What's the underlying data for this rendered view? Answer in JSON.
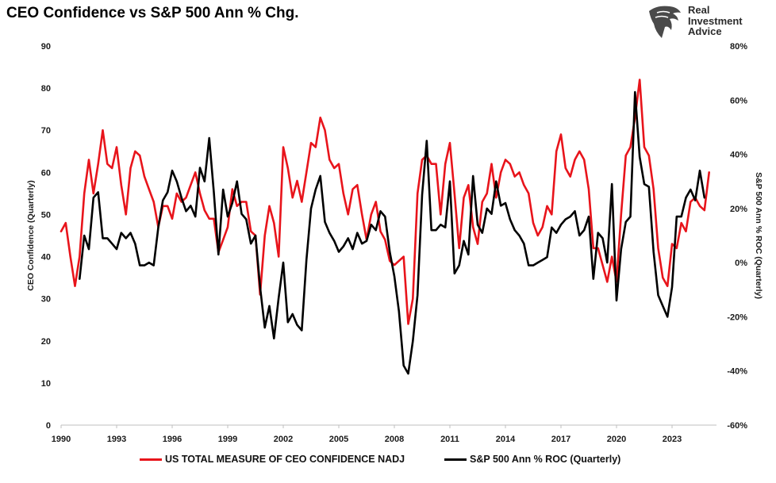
{
  "title": "CEO Confidence vs S&P 500 Ann % Chg.",
  "logo": {
    "line1": "Real",
    "line2": "Investment",
    "line3": "Advice",
    "icon": "eagle-head-icon"
  },
  "colors": {
    "ceo": "#e8141b",
    "sp": "#000000"
  },
  "chart_data": {
    "type": "line",
    "x_ticks": [
      "1990",
      "1993",
      "1996",
      "1999",
      "2002",
      "2005",
      "2008",
      "2011",
      "2014",
      "2017",
      "2020",
      "2023"
    ],
    "x_range": [
      1990,
      2025.4
    ],
    "y_left": {
      "label": "CEO Confidence (Quarterly)",
      "range": [
        0,
        90
      ],
      "ticks": [
        "0",
        "10",
        "20",
        "30",
        "40",
        "50",
        "60",
        "70",
        "80",
        "90"
      ]
    },
    "y_right": {
      "label": "S&P 500 Ann % ROC (Quarterly)",
      "range": [
        -60,
        80
      ],
      "ticks": [
        "-60%",
        "-40%",
        "-20%",
        "0%",
        "20%",
        "40%",
        "60%",
        "80%"
      ]
    },
    "grid": false,
    "legend_position": "bottom",
    "series": [
      {
        "name": "US TOTAL MEASURE OF CEO CONFIDENCE NADJ",
        "axis": "left",
        "points": [
          [
            1990.0,
            46
          ],
          [
            1990.25,
            48
          ],
          [
            1990.5,
            40
          ],
          [
            1990.75,
            33
          ],
          [
            1991.0,
            40
          ],
          [
            1991.25,
            55
          ],
          [
            1991.5,
            63
          ],
          [
            1991.75,
            55
          ],
          [
            1992.0,
            62
          ],
          [
            1992.25,
            70
          ],
          [
            1992.5,
            62
          ],
          [
            1992.75,
            61
          ],
          [
            1993.0,
            66
          ],
          [
            1993.25,
            57
          ],
          [
            1993.5,
            50
          ],
          [
            1993.75,
            61
          ],
          [
            1994.0,
            65
          ],
          [
            1994.25,
            64
          ],
          [
            1994.5,
            59
          ],
          [
            1994.75,
            56
          ],
          [
            1995.0,
            53
          ],
          [
            1995.25,
            47
          ],
          [
            1995.5,
            52
          ],
          [
            1995.75,
            52
          ],
          [
            1996.0,
            49
          ],
          [
            1996.25,
            55
          ],
          [
            1996.5,
            53
          ],
          [
            1996.75,
            54
          ],
          [
            1997.0,
            57
          ],
          [
            1997.25,
            60
          ],
          [
            1997.5,
            55
          ],
          [
            1997.75,
            51
          ],
          [
            1998.0,
            49
          ],
          [
            1998.25,
            49
          ],
          [
            1998.5,
            41
          ],
          [
            1998.75,
            44
          ],
          [
            1999.0,
            47
          ],
          [
            1999.25,
            56
          ],
          [
            1999.5,
            52
          ],
          [
            1999.75,
            53
          ],
          [
            2000.0,
            53
          ],
          [
            2000.25,
            46
          ],
          [
            2000.5,
            45
          ],
          [
            2000.75,
            31
          ],
          [
            2001.0,
            45
          ],
          [
            2001.25,
            52
          ],
          [
            2001.5,
            48
          ],
          [
            2001.75,
            40
          ],
          [
            2002.0,
            66
          ],
          [
            2002.25,
            61
          ],
          [
            2002.5,
            54
          ],
          [
            2002.75,
            58
          ],
          [
            2003.0,
            53
          ],
          [
            2003.25,
            60
          ],
          [
            2003.5,
            67
          ],
          [
            2003.75,
            66
          ],
          [
            2004.0,
            73
          ],
          [
            2004.25,
            70
          ],
          [
            2004.5,
            63
          ],
          [
            2004.75,
            61
          ],
          [
            2005.0,
            62
          ],
          [
            2005.25,
            55
          ],
          [
            2005.5,
            50
          ],
          [
            2005.75,
            56
          ],
          [
            2006.0,
            57
          ],
          [
            2006.25,
            50
          ],
          [
            2006.5,
            44
          ],
          [
            2006.75,
            50
          ],
          [
            2007.0,
            53
          ],
          [
            2007.25,
            46
          ],
          [
            2007.5,
            44
          ],
          [
            2007.75,
            39
          ],
          [
            2008.0,
            38
          ],
          [
            2008.25,
            39
          ],
          [
            2008.5,
            40
          ],
          [
            2008.75,
            24
          ],
          [
            2009.0,
            30
          ],
          [
            2009.25,
            55
          ],
          [
            2009.5,
            63
          ],
          [
            2009.75,
            64
          ],
          [
            2010.0,
            62
          ],
          [
            2010.25,
            62
          ],
          [
            2010.5,
            50
          ],
          [
            2010.75,
            62
          ],
          [
            2011.0,
            67
          ],
          [
            2011.25,
            55
          ],
          [
            2011.5,
            42
          ],
          [
            2011.75,
            54
          ],
          [
            2012.0,
            57
          ],
          [
            2012.25,
            47
          ],
          [
            2012.5,
            43
          ],
          [
            2012.75,
            53
          ],
          [
            2013.0,
            55
          ],
          [
            2013.25,
            62
          ],
          [
            2013.5,
            54
          ],
          [
            2013.75,
            60
          ],
          [
            2014.0,
            63
          ],
          [
            2014.25,
            62
          ],
          [
            2014.5,
            59
          ],
          [
            2014.75,
            60
          ],
          [
            2015.0,
            57
          ],
          [
            2015.25,
            55
          ],
          [
            2015.5,
            48
          ],
          [
            2015.75,
            45
          ],
          [
            2016.0,
            47
          ],
          [
            2016.25,
            52
          ],
          [
            2016.5,
            50
          ],
          [
            2016.75,
            65
          ],
          [
            2017.0,
            69
          ],
          [
            2017.25,
            61
          ],
          [
            2017.5,
            59
          ],
          [
            2017.75,
            63
          ],
          [
            2018.0,
            65
          ],
          [
            2018.25,
            63
          ],
          [
            2018.5,
            56
          ],
          [
            2018.75,
            42
          ],
          [
            2019.0,
            42
          ],
          [
            2019.25,
            38
          ],
          [
            2019.5,
            34
          ],
          [
            2019.75,
            40
          ],
          [
            2020.0,
            34
          ],
          [
            2020.25,
            50
          ],
          [
            2020.5,
            64
          ],
          [
            2020.75,
            66
          ],
          [
            2021.0,
            73
          ],
          [
            2021.25,
            82
          ],
          [
            2021.5,
            66
          ],
          [
            2021.75,
            64
          ],
          [
            2022.0,
            56
          ],
          [
            2022.25,
            42
          ],
          [
            2022.5,
            35
          ],
          [
            2022.75,
            33
          ],
          [
            2023.0,
            43
          ],
          [
            2023.25,
            42
          ],
          [
            2023.5,
            48
          ],
          [
            2023.75,
            46
          ],
          [
            2024.0,
            53
          ],
          [
            2024.25,
            54
          ],
          [
            2024.5,
            52
          ],
          [
            2024.75,
            51
          ],
          [
            2025.0,
            60
          ]
        ]
      },
      {
        "name": "S&P 500 Ann % ROC (Quarterly)",
        "axis": "right",
        "points": [
          [
            1990.0,
            null
          ],
          [
            1990.25,
            null
          ],
          [
            1990.5,
            null
          ],
          [
            1990.75,
            null
          ],
          [
            1991.0,
            -6
          ],
          [
            1991.25,
            10
          ],
          [
            1991.5,
            5
          ],
          [
            1991.75,
            24
          ],
          [
            1992.0,
            26
          ],
          [
            1992.25,
            9
          ],
          [
            1992.5,
            9
          ],
          [
            1992.75,
            7
          ],
          [
            1993.0,
            5
          ],
          [
            1993.25,
            11
          ],
          [
            1993.5,
            9
          ],
          [
            1993.75,
            11
          ],
          [
            1994.0,
            7
          ],
          [
            1994.25,
            -1
          ],
          [
            1994.5,
            -1
          ],
          [
            1994.75,
            0
          ],
          [
            1995.0,
            -1
          ],
          [
            1995.25,
            13
          ],
          [
            1995.5,
            23
          ],
          [
            1995.75,
            26
          ],
          [
            1996.0,
            34
          ],
          [
            1996.25,
            30
          ],
          [
            1996.5,
            24
          ],
          [
            1996.75,
            19
          ],
          [
            1997.0,
            21
          ],
          [
            1997.25,
            17
          ],
          [
            1997.5,
            35
          ],
          [
            1997.75,
            30
          ],
          [
            1998.0,
            46
          ],
          [
            1998.25,
            26
          ],
          [
            1998.5,
            3
          ],
          [
            1998.75,
            27
          ],
          [
            1999.0,
            17
          ],
          [
            1999.25,
            22
          ],
          [
            1999.5,
            30
          ],
          [
            1999.75,
            18
          ],
          [
            2000.0,
            16
          ],
          [
            2000.25,
            7
          ],
          [
            2000.5,
            10
          ],
          [
            2000.75,
            -9
          ],
          [
            2001.0,
            -24
          ],
          [
            2001.25,
            -16
          ],
          [
            2001.5,
            -28
          ],
          [
            2001.75,
            -13
          ],
          [
            2002.0,
            0
          ],
          [
            2002.25,
            -22
          ],
          [
            2002.5,
            -19
          ],
          [
            2002.75,
            -23
          ],
          [
            2003.0,
            -25
          ],
          [
            2003.25,
            1
          ],
          [
            2003.5,
            20
          ],
          [
            2003.75,
            27
          ],
          [
            2004.0,
            32
          ],
          [
            2004.25,
            15
          ],
          [
            2004.5,
            11
          ],
          [
            2004.75,
            8
          ],
          [
            2005.0,
            4
          ],
          [
            2005.25,
            6
          ],
          [
            2005.5,
            9
          ],
          [
            2005.75,
            5
          ],
          [
            2006.0,
            11
          ],
          [
            2006.25,
            7
          ],
          [
            2006.5,
            8
          ],
          [
            2006.75,
            14
          ],
          [
            2007.0,
            12
          ],
          [
            2007.25,
            19
          ],
          [
            2007.5,
            17
          ],
          [
            2007.75,
            4
          ],
          [
            2008.0,
            -5
          ],
          [
            2008.25,
            -18
          ],
          [
            2008.5,
            -38
          ],
          [
            2008.75,
            -41
          ],
          [
            2009.0,
            -29
          ],
          [
            2009.25,
            -12
          ],
          [
            2009.5,
            25
          ],
          [
            2009.75,
            45
          ],
          [
            2010.0,
            12
          ],
          [
            2010.25,
            12
          ],
          [
            2010.5,
            14
          ],
          [
            2010.75,
            13
          ],
          [
            2011.0,
            30
          ],
          [
            2011.25,
            -4
          ],
          [
            2011.5,
            -1
          ],
          [
            2011.75,
            8
          ],
          [
            2012.0,
            3
          ],
          [
            2012.25,
            32
          ],
          [
            2012.5,
            14
          ],
          [
            2012.75,
            11
          ],
          [
            2013.0,
            20
          ],
          [
            2013.25,
            18
          ],
          [
            2013.5,
            30
          ],
          [
            2013.75,
            21
          ],
          [
            2014.0,
            22
          ],
          [
            2014.25,
            16
          ],
          [
            2014.5,
            12
          ],
          [
            2014.75,
            10
          ],
          [
            2015.0,
            7
          ],
          [
            2015.25,
            -1
          ],
          [
            2015.5,
            -1
          ],
          [
            2015.75,
            0
          ],
          [
            2016.0,
            1
          ],
          [
            2016.25,
            2
          ],
          [
            2016.5,
            13
          ],
          [
            2016.75,
            11
          ],
          [
            2017.0,
            14
          ],
          [
            2017.25,
            16
          ],
          [
            2017.5,
            17
          ],
          [
            2017.75,
            19
          ],
          [
            2018.0,
            10
          ],
          [
            2018.25,
            12
          ],
          [
            2018.5,
            17
          ],
          [
            2018.75,
            -6
          ],
          [
            2019.0,
            11
          ],
          [
            2019.25,
            9
          ],
          [
            2019.5,
            0
          ],
          [
            2019.75,
            29
          ],
          [
            2020.0,
            -14
          ],
          [
            2020.25,
            5
          ],
          [
            2020.5,
            15
          ],
          [
            2020.75,
            17
          ],
          [
            2021.0,
            63
          ],
          [
            2021.25,
            39
          ],
          [
            2021.5,
            29
          ],
          [
            2021.75,
            28
          ],
          [
            2022.0,
            4
          ],
          [
            2022.25,
            -12
          ],
          [
            2022.5,
            -16
          ],
          [
            2022.75,
            -20
          ],
          [
            2023.0,
            -9
          ],
          [
            2023.25,
            17
          ],
          [
            2023.5,
            17
          ],
          [
            2023.75,
            24
          ],
          [
            2024.0,
            27
          ],
          [
            2024.25,
            23
          ],
          [
            2024.5,
            34
          ],
          [
            2024.75,
            24
          ]
        ]
      }
    ]
  }
}
